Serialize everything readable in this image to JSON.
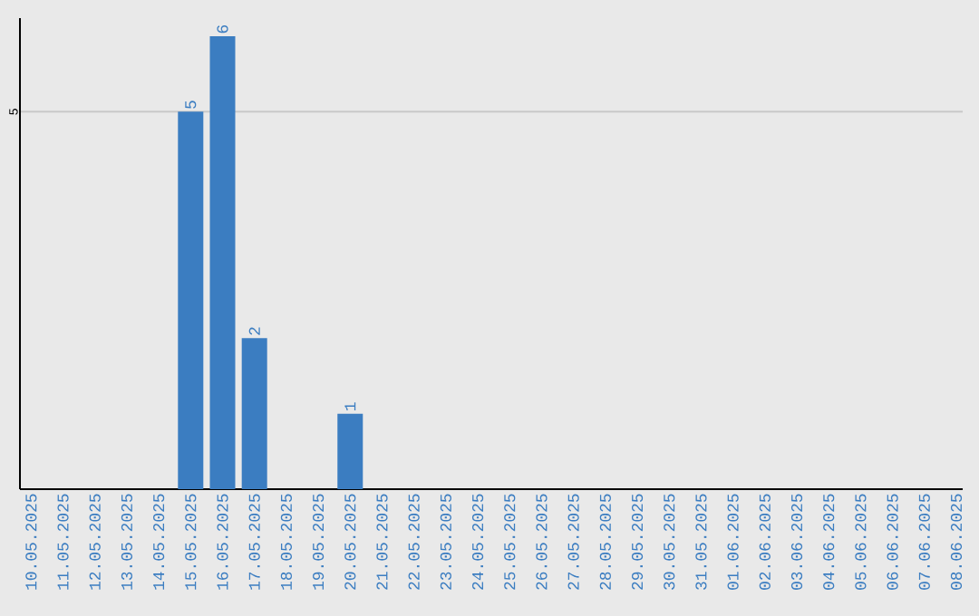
{
  "chart_data": {
    "type": "bar",
    "categories": [
      "10.05.2025",
      "11.05.2025",
      "12.05.2025",
      "13.05.2025",
      "14.05.2025",
      "15.05.2025",
      "16.05.2025",
      "17.05.2025",
      "18.05.2025",
      "19.05.2025",
      "20.05.2025",
      "21.05.2025",
      "22.05.2025",
      "23.05.2025",
      "24.05.2025",
      "25.05.2025",
      "26.05.2025",
      "27.05.2025",
      "28.05.2025",
      "29.05.2025",
      "30.05.2025",
      "31.05.2025",
      "01.06.2025",
      "02.06.2025",
      "03.06.2025",
      "04.06.2025",
      "05.06.2025",
      "06.06.2025",
      "07.06.2025",
      "08.06.2025"
    ],
    "values": [
      0,
      0,
      0,
      0,
      0,
      5,
      6,
      2,
      0,
      0,
      1,
      0,
      0,
      0,
      0,
      0,
      0,
      0,
      0,
      0,
      0,
      0,
      0,
      0,
      0,
      0,
      0,
      0,
      0,
      0
    ],
    "value_labels": [
      null,
      null,
      null,
      null,
      null,
      "5",
      "6",
      "2",
      null,
      null,
      "1",
      null,
      null,
      null,
      null,
      null,
      null,
      null,
      null,
      null,
      null,
      null,
      null,
      null,
      null,
      null,
      null,
      null,
      null,
      null
    ],
    "color": "#3b7dc1",
    "ylim": [
      0,
      6.24
    ],
    "yticks": [
      5
    ],
    "grid": "y"
  }
}
